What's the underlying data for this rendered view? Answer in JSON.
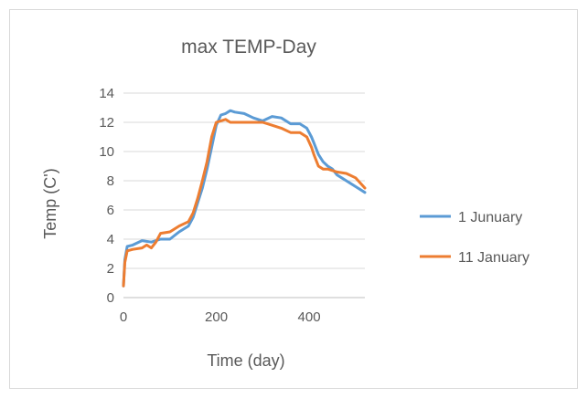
{
  "chart_data": {
    "type": "line",
    "title": "max TEMP-Day",
    "xlabel": "Time (day)",
    "ylabel": "Temp (C')",
    "xlim": [
      0,
      520
    ],
    "ylim": [
      0,
      14
    ],
    "xticks": [
      0,
      200,
      400
    ],
    "xtick_labels": [
      "0",
      "200",
      "400"
    ],
    "yticks": [
      0,
      2,
      4,
      6,
      8,
      10,
      12,
      14
    ],
    "ytick_labels": [
      "0",
      "2",
      "4",
      "6",
      "8",
      "10",
      "12",
      "14"
    ],
    "grid": "horizontal",
    "legend_position": "right",
    "series": [
      {
        "name": "1  Junuary",
        "color": "#5B9BD5",
        "x": [
          0,
          3,
          8,
          20,
          40,
          60,
          80,
          100,
          120,
          140,
          150,
          160,
          170,
          180,
          190,
          200,
          210,
          220,
          230,
          240,
          260,
          280,
          300,
          320,
          340,
          360,
          380,
          395,
          405,
          410,
          420,
          430,
          440,
          450,
          460,
          470,
          480,
          500,
          520
        ],
        "y": [
          0.8,
          2.6,
          3.5,
          3.6,
          3.9,
          3.8,
          4.0,
          4.0,
          4.5,
          4.9,
          5.5,
          6.5,
          7.5,
          8.8,
          10.3,
          11.8,
          12.5,
          12.6,
          12.8,
          12.7,
          12.6,
          12.3,
          12.1,
          12.4,
          12.3,
          11.9,
          11.9,
          11.6,
          11.0,
          10.6,
          9.8,
          9.3,
          9.0,
          8.8,
          8.4,
          8.2,
          8.0,
          7.6,
          7.2
        ]
      },
      {
        "name": "11 January",
        "color": "#ED7D31",
        "x": [
          0,
          3,
          8,
          20,
          40,
          50,
          60,
          70,
          80,
          100,
          120,
          140,
          150,
          160,
          170,
          180,
          190,
          200,
          210,
          220,
          230,
          260,
          300,
          320,
          340,
          360,
          380,
          395,
          405,
          410,
          420,
          430,
          440,
          460,
          480,
          500,
          520
        ],
        "y": [
          0.8,
          2.4,
          3.2,
          3.3,
          3.4,
          3.6,
          3.4,
          3.8,
          4.4,
          4.5,
          4.9,
          5.2,
          5.8,
          6.8,
          8.0,
          9.3,
          11.0,
          12.0,
          12.1,
          12.2,
          12.0,
          12.0,
          12.0,
          11.8,
          11.6,
          11.3,
          11.3,
          11.0,
          10.3,
          9.8,
          9.0,
          8.8,
          8.8,
          8.6,
          8.5,
          8.2,
          7.5
        ]
      }
    ]
  }
}
